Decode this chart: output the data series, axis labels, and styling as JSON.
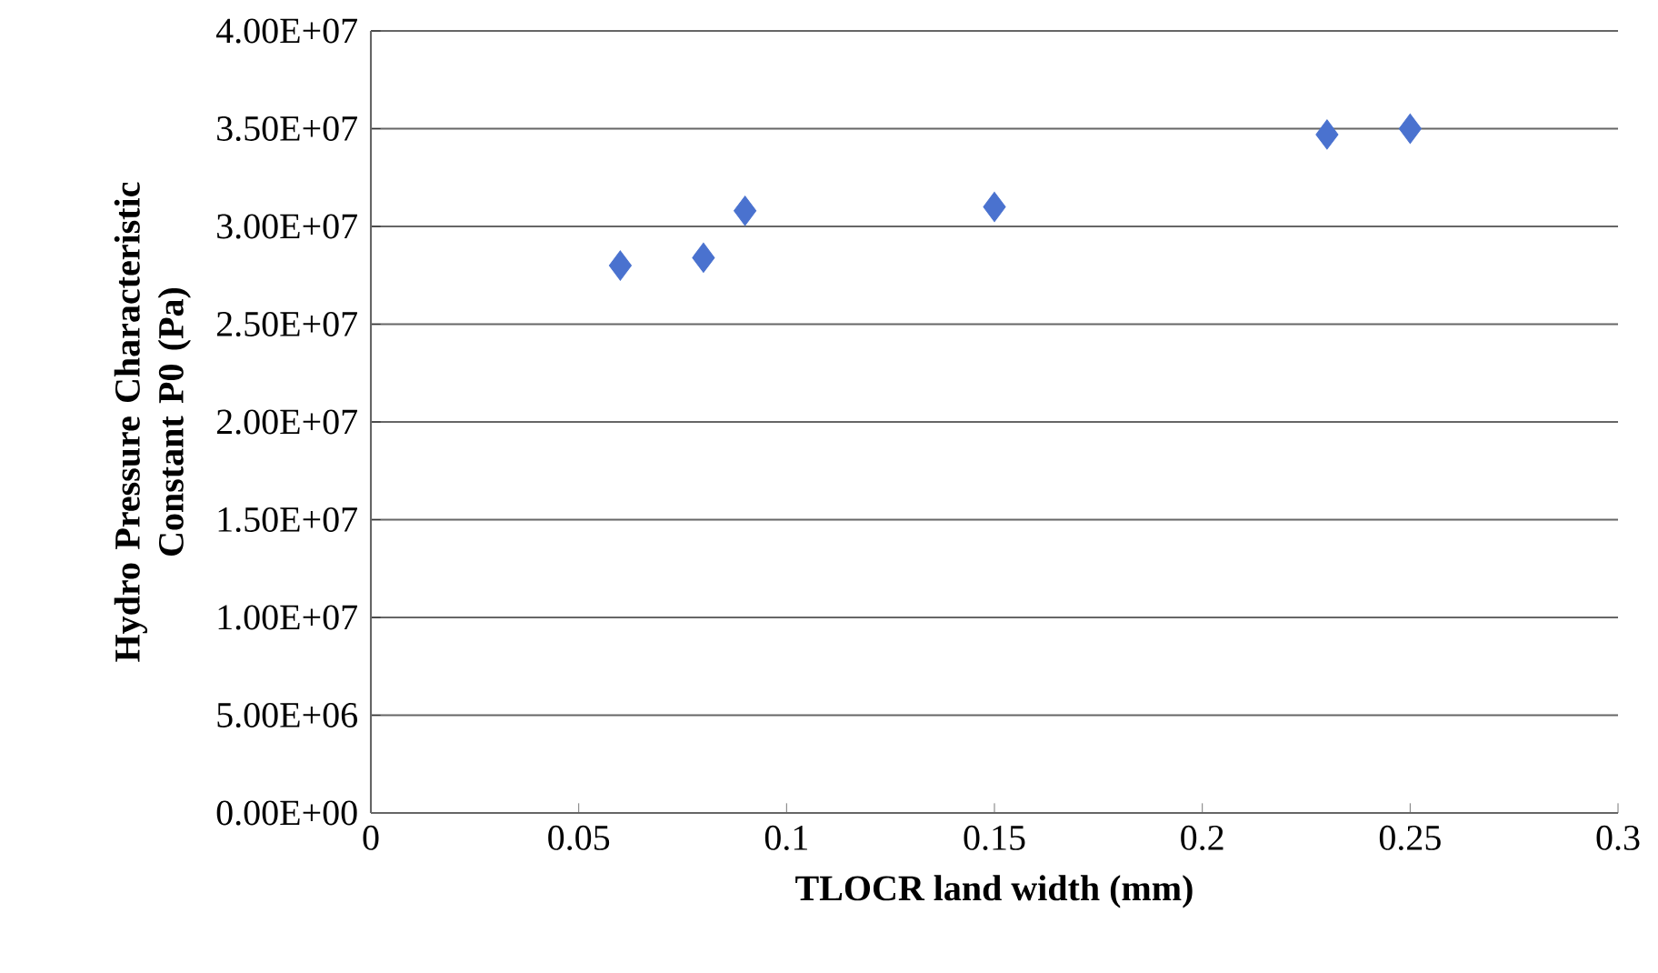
{
  "chart_data": {
    "type": "scatter",
    "xlabel": "TLOCR land width (mm)",
    "ylabel": "Hydro Pressure Characteristic Constant P0 (Pa)",
    "x": [
      0.06,
      0.08,
      0.09,
      0.15,
      0.23,
      0.25
    ],
    "series": [
      {
        "color": "#4a72cf",
        "values": [
          28000000,
          28400000,
          30800000,
          31000000,
          34700000,
          35000000
        ]
      }
    ],
    "xlim": [
      0,
      0.3
    ],
    "xticks": [
      0,
      0.05,
      0.1,
      0.15,
      0.2,
      0.25,
      0.3
    ],
    "ylim": [
      0,
      40000000
    ],
    "yticks": [
      {
        "value": 0,
        "label": "0.00E+00"
      },
      {
        "value": 5000000,
        "label": "5.00E+06"
      },
      {
        "value": 10000000,
        "label": "1.00E+07"
      },
      {
        "value": 15000000,
        "label": "1.50E+07"
      },
      {
        "value": 20000000,
        "label": "2.00E+07"
      },
      {
        "value": 25000000,
        "label": "2.50E+07"
      },
      {
        "value": 30000000,
        "label": "3.00E+07"
      },
      {
        "value": 35000000,
        "label": "3.50E+07"
      },
      {
        "value": 40000000,
        "label": "4.00E+07"
      }
    ],
    "grid": "y",
    "marker": "diamond"
  }
}
